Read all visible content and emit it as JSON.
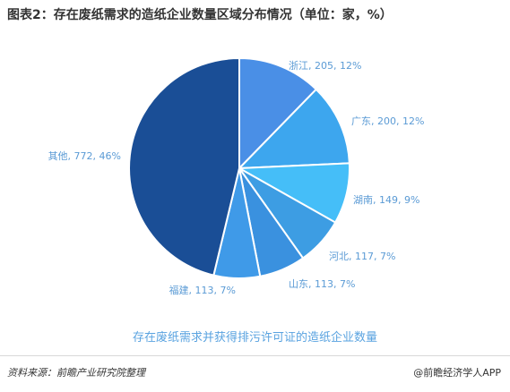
{
  "title": "图表2：存在废纸需求的造纸企业数量区域分布情况（单位：家，%）",
  "subtitle": "存在废纸需求并获得排污许可证的造纸企业数量",
  "source": "资料来源：前瞻产业研究院整理",
  "brand": "@前瞻经济学人APP",
  "chart_data": {
    "type": "pie",
    "title": "图表2：存在废纸需求的造纸企业数量区域分布情况（单位：家，%）",
    "subtitle": "存在废纸需求并获得排污许可证的造纸企业数量",
    "slices": [
      {
        "name": "浙江",
        "value": 205,
        "percent": 12,
        "color": "#4a8fe6",
        "label": "浙江, 205, 12%"
      },
      {
        "name": "广东",
        "value": 200,
        "percent": 12,
        "color": "#3da6ee",
        "label": "广东, 200, 12%"
      },
      {
        "name": "湖南",
        "value": 149,
        "percent": 9,
        "color": "#45bef8",
        "label": "湖南, 149, 9%"
      },
      {
        "name": "河北",
        "value": 117,
        "percent": 7,
        "color": "#3d9de3",
        "label": "河北, 117, 7%"
      },
      {
        "name": "山东",
        "value": 113,
        "percent": 7,
        "color": "#3a91df",
        "label": "山东, 113, 7%"
      },
      {
        "name": "福建",
        "value": 113,
        "percent": 7,
        "color": "#3f9ae8",
        "label": "福建, 113, 7%"
      },
      {
        "name": "其他",
        "value": 772,
        "percent": 46,
        "color": "#1a4e96",
        "label": "其他, 772, 46%"
      }
    ]
  }
}
